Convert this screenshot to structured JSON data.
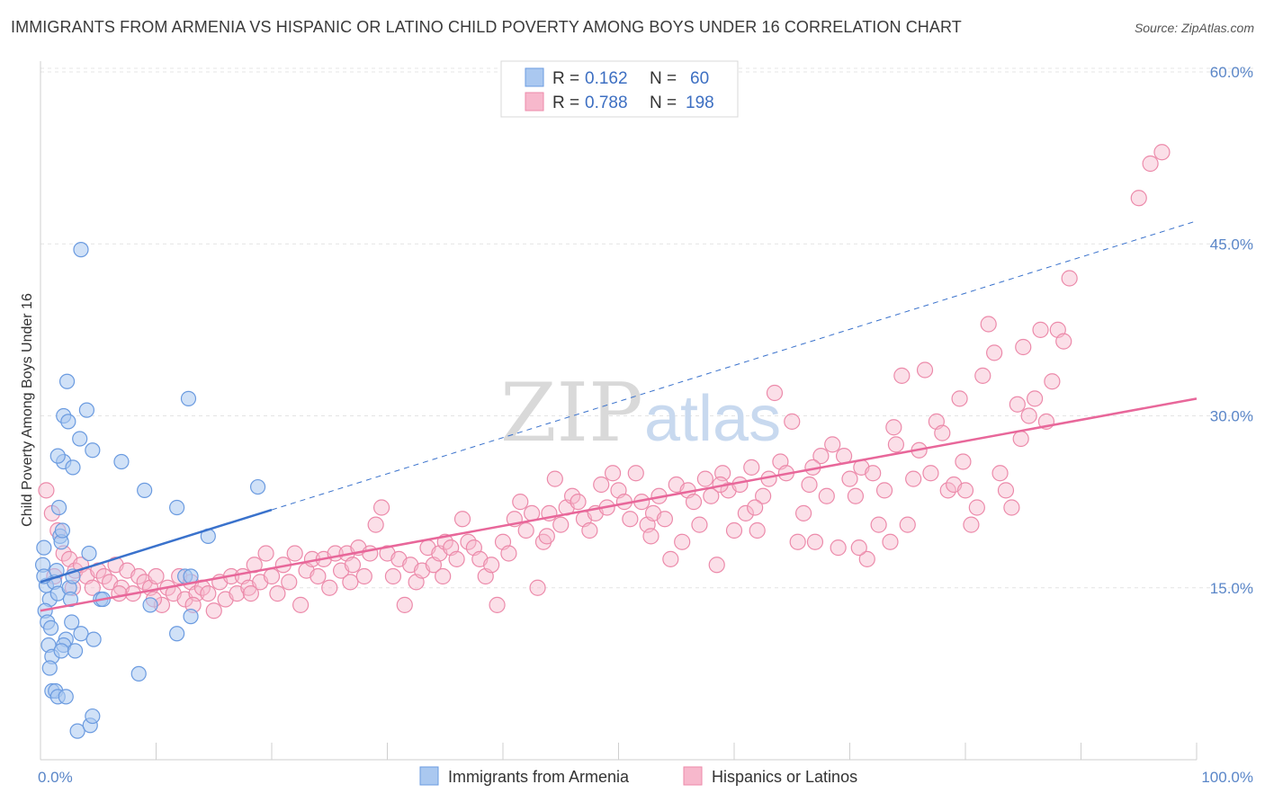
{
  "title": "IMMIGRANTS FROM ARMENIA VS HISPANIC OR LATINO CHILD POVERTY AMONG BOYS UNDER 16 CORRELATION CHART",
  "source": "Source: ZipAtlas.com",
  "watermark": {
    "zip": "ZIP",
    "atlas": "atlas"
  },
  "colors": {
    "blue_fill": "#aac8f0",
    "blue_stroke": "#6b9be0",
    "blue_line": "#3a72cc",
    "pink_fill": "#f7b8cc",
    "pink_stroke": "#ec8aaa",
    "pink_line": "#e8679a",
    "tick_label": "#5a86c8",
    "grid": "#e4e4e4"
  },
  "legend": {
    "rows": [
      {
        "r_label": "R =",
        "r_value": "0.162",
        "n_label": "N =",
        "n_value": "60"
      },
      {
        "r_label": "R =",
        "r_value": "0.788",
        "n_label": "N =",
        "n_value": "198"
      }
    ]
  },
  "chart_data": {
    "type": "scatter",
    "xlabel": "",
    "ylabel": "Child Poverty Among Boys Under 16",
    "xlim": [
      0,
      100
    ],
    "ylim": [
      0,
      60
    ],
    "x_tick_labels": [
      "0.0%",
      "100.0%"
    ],
    "y_ticks": [
      15,
      30,
      45,
      60
    ],
    "y_tick_labels": [
      "15.0%",
      "30.0%",
      "45.0%",
      "60.0%"
    ],
    "grid": true,
    "legend_position": "bottom-center",
    "series": [
      {
        "name": "Immigrants from Armenia",
        "color": "#aac8f0",
        "trend": {
          "x0": 0,
          "y0": 15.5,
          "x1": 20,
          "y1": 21.8,
          "dashed_to_x": 100,
          "dashed_to_y": 47
        },
        "points": [
          [
            0.3,
            18.5
          ],
          [
            0.5,
            15.2
          ],
          [
            0.8,
            14.0
          ],
          [
            0.4,
            13.0
          ],
          [
            0.6,
            12.0
          ],
          [
            0.9,
            11.5
          ],
          [
            0.7,
            10.0
          ],
          [
            1.0,
            9.0
          ],
          [
            0.8,
            8.0
          ],
          [
            1.2,
            15.5
          ],
          [
            1.5,
            14.5
          ],
          [
            1.0,
            6.0
          ],
          [
            1.3,
            6.0
          ],
          [
            1.6,
            22.0
          ],
          [
            1.7,
            19.5
          ],
          [
            1.8,
            19.0
          ],
          [
            1.9,
            20.0
          ],
          [
            2.0,
            26.0
          ],
          [
            1.5,
            26.5
          ],
          [
            2.3,
            33.0
          ],
          [
            2.0,
            30.0
          ],
          [
            2.4,
            29.5
          ],
          [
            2.5,
            15.0
          ],
          [
            2.6,
            14.0
          ],
          [
            2.7,
            12.0
          ],
          [
            2.2,
            10.5
          ],
          [
            2.0,
            10.0
          ],
          [
            1.8,
            9.5
          ],
          [
            1.5,
            5.5
          ],
          [
            2.2,
            5.5
          ],
          [
            2.8,
            25.5
          ],
          [
            3.0,
            9.5
          ],
          [
            3.2,
            2.5
          ],
          [
            3.4,
            28.0
          ],
          [
            3.5,
            11.0
          ],
          [
            4.0,
            30.5
          ],
          [
            4.2,
            18.0
          ],
          [
            4.5,
            27.0
          ],
          [
            4.6,
            10.5
          ],
          [
            4.3,
            3.0
          ],
          [
            4.5,
            3.8
          ],
          [
            5.2,
            14.0
          ],
          [
            5.4,
            14.0
          ],
          [
            3.5,
            44.5
          ],
          [
            7.0,
            26.0
          ],
          [
            8.5,
            7.5
          ],
          [
            9.0,
            23.5
          ],
          [
            9.5,
            13.5
          ],
          [
            11.8,
            22.0
          ],
          [
            11.8,
            11.0
          ],
          [
            12.5,
            16.0
          ],
          [
            12.8,
            31.5
          ],
          [
            13.0,
            16.0
          ],
          [
            13.0,
            12.5
          ],
          [
            14.5,
            19.5
          ],
          [
            18.8,
            23.8
          ],
          [
            0.2,
            17.0
          ],
          [
            0.3,
            16.0
          ],
          [
            1.4,
            16.5
          ],
          [
            2.8,
            16.0
          ]
        ]
      },
      {
        "name": "Hispanics or Latinos",
        "color": "#f7b8cc",
        "trend": {
          "x0": 0,
          "y0": 13.0,
          "x1": 100,
          "y1": 31.5
        },
        "points": [
          [
            0.5,
            23.5
          ],
          [
            1.0,
            21.5
          ],
          [
            1.5,
            20.0
          ],
          [
            2.0,
            18.0
          ],
          [
            2.5,
            17.5
          ],
          [
            3.0,
            16.5
          ],
          [
            3.5,
            17.0
          ],
          [
            4.0,
            16.0
          ],
          [
            4.5,
            15.0
          ],
          [
            5.0,
            16.5
          ],
          [
            5.5,
            16.0
          ],
          [
            6.0,
            15.5
          ],
          [
            6.5,
            17.0
          ],
          [
            7.0,
            15.0
          ],
          [
            7.5,
            16.5
          ],
          [
            8.0,
            14.5
          ],
          [
            8.5,
            16.0
          ],
          [
            9.0,
            15.5
          ],
          [
            9.5,
            15.0
          ],
          [
            10.0,
            16.0
          ],
          [
            10.5,
            13.5
          ],
          [
            11.0,
            15.0
          ],
          [
            11.5,
            14.5
          ],
          [
            12.0,
            16.0
          ],
          [
            12.5,
            14.0
          ],
          [
            13.0,
            15.5
          ],
          [
            13.5,
            14.5
          ],
          [
            14.0,
            15.0
          ],
          [
            14.5,
            14.5
          ],
          [
            15.0,
            13.0
          ],
          [
            15.5,
            15.5
          ],
          [
            16.0,
            14.0
          ],
          [
            16.5,
            16.0
          ],
          [
            17.0,
            14.5
          ],
          [
            17.5,
            16.0
          ],
          [
            18.0,
            15.0
          ],
          [
            18.5,
            17.0
          ],
          [
            19.0,
            15.5
          ],
          [
            19.5,
            18.0
          ],
          [
            20.0,
            16.0
          ],
          [
            20.5,
            14.5
          ],
          [
            21.0,
            17.0
          ],
          [
            21.5,
            15.5
          ],
          [
            22.0,
            18.0
          ],
          [
            22.5,
            13.5
          ],
          [
            23.0,
            16.5
          ],
          [
            23.5,
            17.5
          ],
          [
            24.0,
            16.0
          ],
          [
            24.5,
            17.5
          ],
          [
            25.0,
            15.0
          ],
          [
            25.5,
            18.0
          ],
          [
            26.0,
            16.5
          ],
          [
            26.5,
            18.0
          ],
          [
            27.0,
            17.0
          ],
          [
            27.5,
            18.5
          ],
          [
            28.0,
            16.0
          ],
          [
            28.5,
            18.0
          ],
          [
            29.0,
            20.5
          ],
          [
            29.5,
            22.0
          ],
          [
            30.0,
            18.0
          ],
          [
            30.5,
            16.0
          ],
          [
            31.0,
            17.5
          ],
          [
            31.5,
            13.5
          ],
          [
            32.0,
            17.0
          ],
          [
            32.5,
            15.5
          ],
          [
            33.0,
            16.5
          ],
          [
            33.5,
            18.5
          ],
          [
            34.0,
            17.0
          ],
          [
            34.5,
            18.0
          ],
          [
            35.0,
            19.0
          ],
          [
            35.5,
            18.5
          ],
          [
            36.0,
            17.5
          ],
          [
            36.5,
            21.0
          ],
          [
            37.0,
            19.0
          ],
          [
            37.5,
            18.5
          ],
          [
            38.0,
            17.5
          ],
          [
            38.5,
            16.0
          ],
          [
            39.0,
            17.0
          ],
          [
            39.5,
            13.5
          ],
          [
            40.0,
            19.0
          ],
          [
            40.5,
            18.0
          ],
          [
            41.0,
            21.0
          ],
          [
            41.5,
            22.5
          ],
          [
            42.0,
            20.0
          ],
          [
            42.5,
            21.5
          ],
          [
            43.0,
            15.0
          ],
          [
            43.5,
            19.0
          ],
          [
            44.0,
            21.5
          ],
          [
            44.5,
            24.5
          ],
          [
            45.0,
            20.5
          ],
          [
            45.5,
            22.0
          ],
          [
            46.0,
            23.0
          ],
          [
            46.5,
            22.5
          ],
          [
            47.0,
            21.0
          ],
          [
            47.5,
            20.0
          ],
          [
            48.0,
            21.5
          ],
          [
            48.5,
            24.0
          ],
          [
            49.0,
            22.0
          ],
          [
            49.5,
            25.0
          ],
          [
            50.0,
            23.5
          ],
          [
            50.5,
            22.5
          ],
          [
            51.0,
            21.0
          ],
          [
            51.5,
            25.0
          ],
          [
            52.0,
            22.5
          ],
          [
            52.5,
            20.5
          ],
          [
            53.0,
            21.5
          ],
          [
            53.5,
            23.0
          ],
          [
            54.0,
            21.0
          ],
          [
            54.5,
            17.5
          ],
          [
            55.0,
            24.0
          ],
          [
            55.5,
            19.0
          ],
          [
            56.0,
            23.5
          ],
          [
            56.5,
            22.5
          ],
          [
            57.0,
            20.5
          ],
          [
            57.5,
            24.5
          ],
          [
            58.0,
            23.0
          ],
          [
            58.5,
            17.0
          ],
          [
            59.0,
            25.0
          ],
          [
            59.5,
            23.5
          ],
          [
            60.0,
            20.0
          ],
          [
            60.5,
            24.0
          ],
          [
            61.0,
            21.5
          ],
          [
            61.5,
            25.5
          ],
          [
            62.0,
            20.0
          ],
          [
            62.5,
            23.0
          ],
          [
            63.0,
            24.5
          ],
          [
            63.5,
            32.0
          ],
          [
            64.0,
            26.0
          ],
          [
            64.5,
            25.0
          ],
          [
            65.0,
            29.5
          ],
          [
            65.5,
            19.0
          ],
          [
            66.0,
            21.5
          ],
          [
            66.5,
            24.0
          ],
          [
            67.0,
            19.0
          ],
          [
            67.5,
            26.5
          ],
          [
            68.0,
            23.0
          ],
          [
            68.5,
            27.5
          ],
          [
            69.0,
            18.5
          ],
          [
            69.5,
            26.5
          ],
          [
            70.0,
            24.5
          ],
          [
            70.5,
            23.0
          ],
          [
            71.0,
            25.5
          ],
          [
            71.5,
            17.5
          ],
          [
            72.0,
            25.0
          ],
          [
            72.5,
            20.5
          ],
          [
            73.0,
            23.5
          ],
          [
            73.5,
            19.0
          ],
          [
            74.0,
            27.5
          ],
          [
            74.5,
            33.5
          ],
          [
            75.0,
            20.5
          ],
          [
            75.5,
            24.5
          ],
          [
            76.0,
            27.0
          ],
          [
            76.5,
            34.0
          ],
          [
            77.0,
            25.0
          ],
          [
            77.5,
            29.5
          ],
          [
            78.0,
            28.5
          ],
          [
            78.5,
            23.5
          ],
          [
            79.0,
            24.0
          ],
          [
            79.5,
            31.5
          ],
          [
            80.0,
            23.5
          ],
          [
            80.5,
            20.5
          ],
          [
            81.0,
            22.0
          ],
          [
            81.5,
            33.5
          ],
          [
            82.0,
            38.0
          ],
          [
            82.5,
            35.5
          ],
          [
            83.0,
            25.0
          ],
          [
            83.5,
            23.5
          ],
          [
            84.0,
            22.0
          ],
          [
            84.5,
            31.0
          ],
          [
            85.0,
            36.0
          ],
          [
            85.5,
            30.0
          ],
          [
            86.0,
            31.5
          ],
          [
            86.5,
            37.5
          ],
          [
            87.0,
            29.5
          ],
          [
            87.5,
            33.0
          ],
          [
            88.0,
            37.5
          ],
          [
            88.5,
            36.5
          ],
          [
            89.0,
            42.0
          ],
          [
            95.0,
            49.0
          ],
          [
            96.0,
            52.0
          ],
          [
            97.0,
            53.0
          ],
          [
            1.2,
            16.0
          ],
          [
            2.8,
            15.0
          ],
          [
            6.8,
            14.5
          ],
          [
            9.8,
            14.0
          ],
          [
            13.2,
            13.5
          ],
          [
            18.2,
            14.5
          ],
          [
            26.8,
            15.5
          ],
          [
            34.8,
            16.0
          ],
          [
            43.8,
            19.5
          ],
          [
            52.8,
            19.5
          ],
          [
            61.8,
            22.0
          ],
          [
            70.8,
            18.5
          ],
          [
            79.8,
            26.0
          ],
          [
            84.8,
            28.0
          ],
          [
            58.8,
            24.0
          ],
          [
            66.8,
            25.5
          ],
          [
            73.8,
            29.0
          ]
        ]
      }
    ]
  }
}
